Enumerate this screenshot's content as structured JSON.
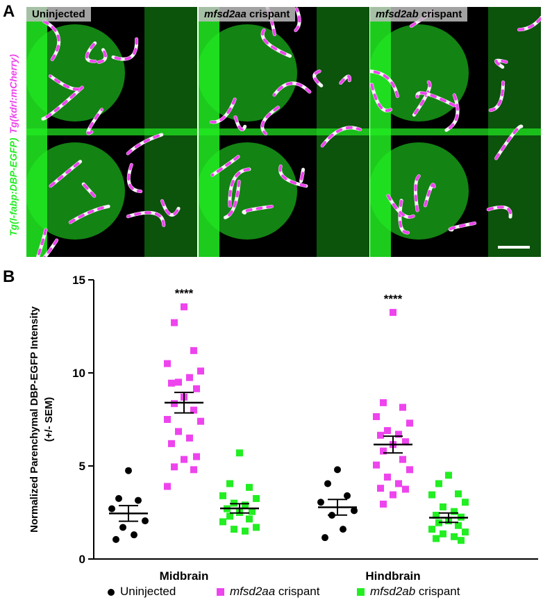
{
  "figure": {
    "panel_a_letter": "A",
    "panel_b_letter": "B",
    "side_label_green": "Tg(l-fabp:DBP-EGFP)",
    "side_label_magenta": "Tg(kdrl:mCherry)",
    "colors": {
      "green": "#22ee22",
      "magenta": "#ee44ee",
      "black": "#000000"
    },
    "panels": [
      {
        "label_italic": "",
        "label_plain": "Uninjected"
      },
      {
        "label_italic": "mfsd2aa",
        "label_plain": " crispant"
      },
      {
        "label_italic": "mfsd2ab",
        "label_plain": " crispant"
      }
    ]
  },
  "chart_data": {
    "type": "scatter",
    "ylabel_line1": "Normalized Parenchymal DBP-EGFP Intensity",
    "ylabel_line2": "(+/- SEM)",
    "ylim": [
      0,
      15
    ],
    "yticks": [
      0,
      5,
      10,
      15
    ],
    "groups": [
      "Midbrain",
      "Hindbrain"
    ],
    "significance": [
      "****",
      "****"
    ],
    "series": [
      {
        "name_italic": "",
        "name_plain": "Uninjected",
        "color": "#000000",
        "marker": "circle",
        "values": [
          [
            4.75,
            3.25,
            3.15,
            2.7,
            2.05,
            1.7,
            1.3,
            1.05
          ],
          [
            4.8,
            4.05,
            3.4,
            3.05,
            2.6,
            2.35,
            1.6,
            1.15
          ]
        ],
        "mean": [
          2.45,
          2.78
        ],
        "sem": [
          0.42,
          0.42
        ]
      },
      {
        "name_italic": "mfsd2aa",
        "name_plain": " crispant",
        "color": "#ee44ee",
        "marker": "square",
        "values": [
          [
            13.55,
            12.7,
            11.2,
            10.5,
            10.1,
            9.5,
            9.75,
            9.45,
            9.15,
            8.7,
            8.35,
            8.0,
            7.5,
            7.4,
            6.85,
            6.5,
            6.2,
            5.5,
            5.35,
            4.95,
            4.8,
            3.9
          ],
          [
            13.25,
            8.4,
            8.15,
            7.65,
            7.3,
            6.9,
            6.7,
            6.65,
            6.3,
            6.15,
            5.8,
            5.35,
            5.05,
            4.8,
            4.4,
            4.05,
            3.8,
            3.75,
            3.45,
            2.95
          ]
        ],
        "mean": [
          8.4,
          6.15
        ],
        "sem": [
          0.55,
          0.45
        ]
      },
      {
        "name_italic": "mfsd2ab",
        "name_plain": " crispant",
        "color": "#22ee22",
        "marker": "square",
        "values": [
          [
            5.7,
            4.05,
            3.85,
            3.4,
            3.25,
            3.0,
            2.9,
            2.7,
            2.55,
            2.5,
            2.3,
            2.15,
            2.0,
            1.7,
            1.6,
            1.5
          ],
          [
            4.5,
            4.05,
            3.5,
            3.45,
            3.05,
            2.8,
            2.55,
            2.35,
            2.25,
            2.05,
            1.95,
            1.8,
            1.6,
            1.45,
            1.35,
            1.2,
            1.1,
            1.0
          ]
        ],
        "mean": [
          2.72,
          2.22
        ],
        "sem": [
          0.25,
          0.25
        ]
      }
    ]
  }
}
